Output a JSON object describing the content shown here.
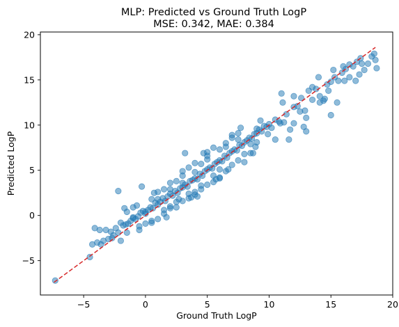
{
  "chart_data": {
    "type": "scatter",
    "title": "MLP: Predicted vs Ground Truth LogP",
    "subtitle": "MSE: 0.342, MAE: 0.384",
    "xlabel": "Ground Truth LogP",
    "ylabel": "Predicted LogP",
    "xlim": [
      -8.5,
      20
    ],
    "ylim": [
      -8.8,
      20.3
    ],
    "xticks": [
      -5,
      0,
      5,
      10,
      15,
      20
    ],
    "yticks": [
      -5,
      0,
      5,
      10,
      15,
      20
    ],
    "grid": false,
    "colors": {
      "points": "#1f77b4",
      "reference_line": "#d62728"
    },
    "reference_line": {
      "style": "dashed",
      "x": [
        -7.4,
        18.6
      ],
      "y": [
        -7.4,
        18.6
      ]
    },
    "series": [
      {
        "values_note_free": true,
        "x": [
          -7.3,
          -4.5,
          -4.3,
          -4.1,
          -3.9,
          -3.6,
          -3.4,
          -3.2,
          -3.0,
          -2.8,
          -2.6,
          -2.4,
          -2.2,
          -2.0,
          -1.8,
          -1.6,
          -1.4,
          -1.2,
          -1.0,
          -0.8,
          -0.6,
          -0.4,
          -0.2,
          0.0,
          0.2,
          0.4,
          0.6,
          0.8,
          1.0,
          1.2,
          1.4,
          1.6,
          1.8,
          2.0,
          2.2,
          2.4,
          2.6,
          2.8,
          3.0,
          3.2,
          3.4,
          3.6,
          3.8,
          4.0,
          4.2,
          4.4,
          4.6,
          4.8,
          5.0,
          5.2,
          5.4,
          5.6,
          5.8,
          6.0,
          6.2,
          6.4,
          6.6,
          6.8,
          7.0,
          7.2,
          7.4,
          7.6,
          7.8,
          8.0,
          8.2,
          8.4,
          8.6,
          8.8,
          9.0,
          9.2,
          9.4,
          9.6,
          9.8,
          10.0,
          10.2,
          10.5,
          10.8,
          11.1,
          11.4,
          11.7,
          12.0,
          12.3,
          12.6,
          12.9,
          13.2,
          13.5,
          13.8,
          14.1,
          14.4,
          14.7,
          15.0,
          15.3,
          15.6,
          15.9,
          16.2,
          16.5,
          16.8,
          17.1,
          17.4,
          17.7,
          18.0,
          18.3,
          18.6,
          -2.0,
          -1.5,
          -1.0,
          -0.5,
          0.0,
          0.5,
          1.0,
          1.5,
          2.0,
          2.5,
          3.0,
          3.5,
          4.0,
          4.5,
          5.0,
          5.5,
          6.0,
          6.5,
          7.0,
          7.5,
          8.0,
          8.5,
          9.0,
          -1.0,
          0.0,
          1.0,
          2.0,
          3.0,
          4.0,
          5.0,
          6.0,
          7.0,
          8.0,
          9.0,
          0.5,
          1.5,
          2.5,
          3.5,
          4.5,
          5.5,
          6.5,
          7.5,
          1.0,
          2.0,
          3.0,
          4.0,
          5.0,
          6.0,
          -1.5,
          -0.5,
          0.5,
          1.5,
          2.5,
          3.5,
          4.5,
          5.5,
          6.5,
          7.5,
          8.5,
          2.0,
          3.0,
          4.0,
          5.0,
          6.0,
          7.0,
          12.0,
          13.0,
          14.0,
          15.5,
          16.5,
          17.5,
          18.7,
          11.0,
          12.5,
          13.5,
          14.5,
          16.0,
          13.0,
          15.0,
          17.0,
          12.0,
          14.8,
          -0.3,
          -2.2,
          3.2,
          4.2,
          10.5,
          11.2,
          9.3,
          8.7,
          7.7,
          6.7,
          5.7,
          4.7,
          3.7,
          2.7,
          1.7,
          0.7,
          -0.7,
          -1.7,
          -2.7,
          -3.7,
          14.1,
          12.8,
          11.6,
          10.9,
          9.9,
          8.9,
          15.2,
          16.1,
          17.3,
          18.5
        ],
        "y": [
          -7.2,
          -4.6,
          -3.2,
          -1.4,
          -3.0,
          -3.2,
          -2.8,
          -1.6,
          -2.6,
          -1.8,
          -2.2,
          -1.4,
          -1.9,
          -0.8,
          -1.1,
          -1.0,
          -0.9,
          -0.6,
          -0.2,
          -0.4,
          -0.1,
          0.3,
          0.5,
          0.2,
          0.6,
          0.9,
          0.8,
          1.4,
          1.2,
          1.5,
          1.9,
          1.6,
          2.1,
          2.4,
          2.2,
          2.7,
          2.5,
          3.0,
          3.1,
          3.4,
          3.2,
          3.8,
          3.9,
          4.1,
          4.0,
          4.6,
          4.4,
          4.9,
          5.1,
          5.3,
          5.2,
          5.7,
          5.9,
          6.1,
          6.0,
          6.6,
          6.4,
          6.9,
          7.1,
          7.3,
          7.2,
          7.8,
          7.7,
          8.1,
          8.3,
          8.6,
          8.5,
          9.0,
          9.1,
          9.5,
          9.3,
          9.9,
          9.8,
          10.1,
          9.7,
          10.6,
          10.4,
          12.5,
          11.2,
          9.5,
          12.0,
          12.1,
          13.0,
          11.6,
          13.8,
          12.8,
          14.0,
          13.2,
          12.7,
          14.5,
          14.8,
          15.3,
          14.9,
          15.8,
          16.2,
          16.7,
          16.5,
          17.0,
          17.4,
          16.1,
          16.8,
          17.6,
          17.2,
          -2.8,
          -1.9,
          -0.3,
          -1.2,
          0.4,
          -0.8,
          1.8,
          0.6,
          2.9,
          1.5,
          3.6,
          2.4,
          4.8,
          3.3,
          6.2,
          4.4,
          5.1,
          7.6,
          5.6,
          8.4,
          6.8,
          7.9,
          9.6,
          0.9,
          -0.9,
          2.6,
          0.8,
          4.4,
          2.6,
          6.6,
          4.2,
          8.9,
          5.9,
          8.1,
          1.8,
          0.2,
          3.8,
          1.9,
          5.7,
          3.7,
          8.0,
          6.1,
          -0.4,
          3.6,
          1.6,
          5.8,
          3.4,
          7.3,
          0.4,
          -1.6,
          -0.6,
          2.9,
          0.9,
          5.3,
          2.9,
          7.5,
          4.9,
          9.1,
          6.9,
          1.0,
          4.9,
          2.3,
          7.0,
          4.1,
          8.6,
          13.2,
          10.8,
          15.3,
          12.5,
          15.3,
          16.8,
          16.3,
          13.5,
          11.5,
          14.2,
          12.9,
          16.5,
          9.3,
          11.1,
          14.9,
          10.2,
          13.8,
          3.2,
          2.7,
          6.9,
          2.1,
          8.4,
          10.3,
          10.5,
          6.9,
          9.7,
          5.1,
          4.0,
          6.9,
          2.0,
          1.8,
          -0.2,
          2.5,
          1.1,
          0.8,
          -2.5,
          -1.6,
          12.5,
          9.8,
          8.4,
          10.2,
          9.0,
          7.6,
          16.1,
          14.9,
          15.6,
          17.9
        ]
      }
    ]
  }
}
